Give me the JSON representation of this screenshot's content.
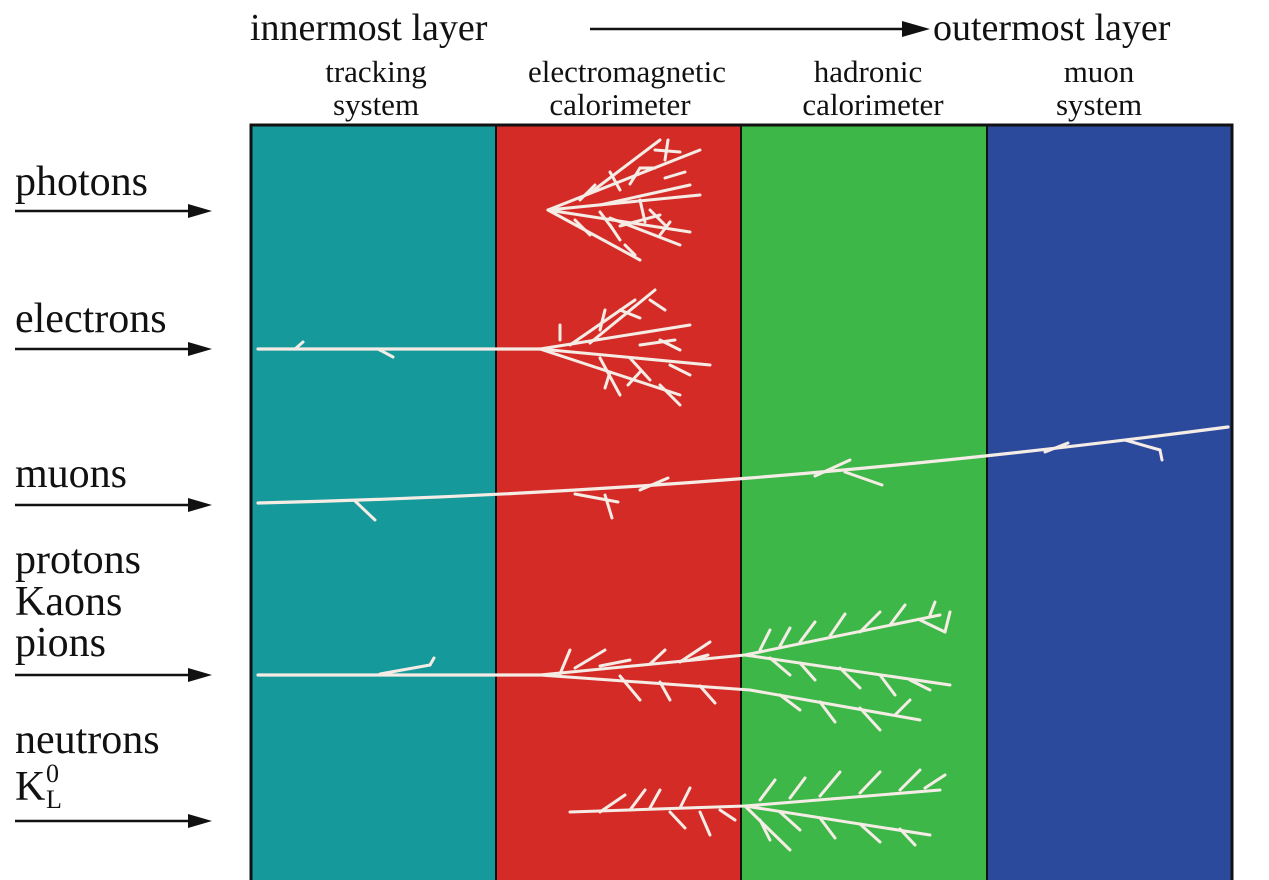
{
  "header": {
    "inner_label": "innermost layer",
    "outer_label": "outermost layer"
  },
  "layers": [
    {
      "line1": "tracking",
      "line2": "system",
      "color": "#16999a"
    },
    {
      "line1": "electromagnetic",
      "line2": "calorimeter",
      "color": "#d42b27"
    },
    {
      "line1": "hadronic",
      "line2": "calorimeter",
      "color": "#3db748"
    },
    {
      "line1": "muon",
      "line2": "system",
      "color": "#2b4a9c"
    }
  ],
  "particles": {
    "photons": "photons",
    "electrons": "electrons",
    "muons": "muons",
    "protons": "protons",
    "kaons": "Kaons",
    "pions": "pions",
    "neutrons": "neutrons",
    "k0l_base": "K",
    "k0l_sup": "0",
    "k0l_sub": "L"
  },
  "colors": {
    "track": "#f5ece6",
    "text": "#111111",
    "outline": "#111111"
  }
}
